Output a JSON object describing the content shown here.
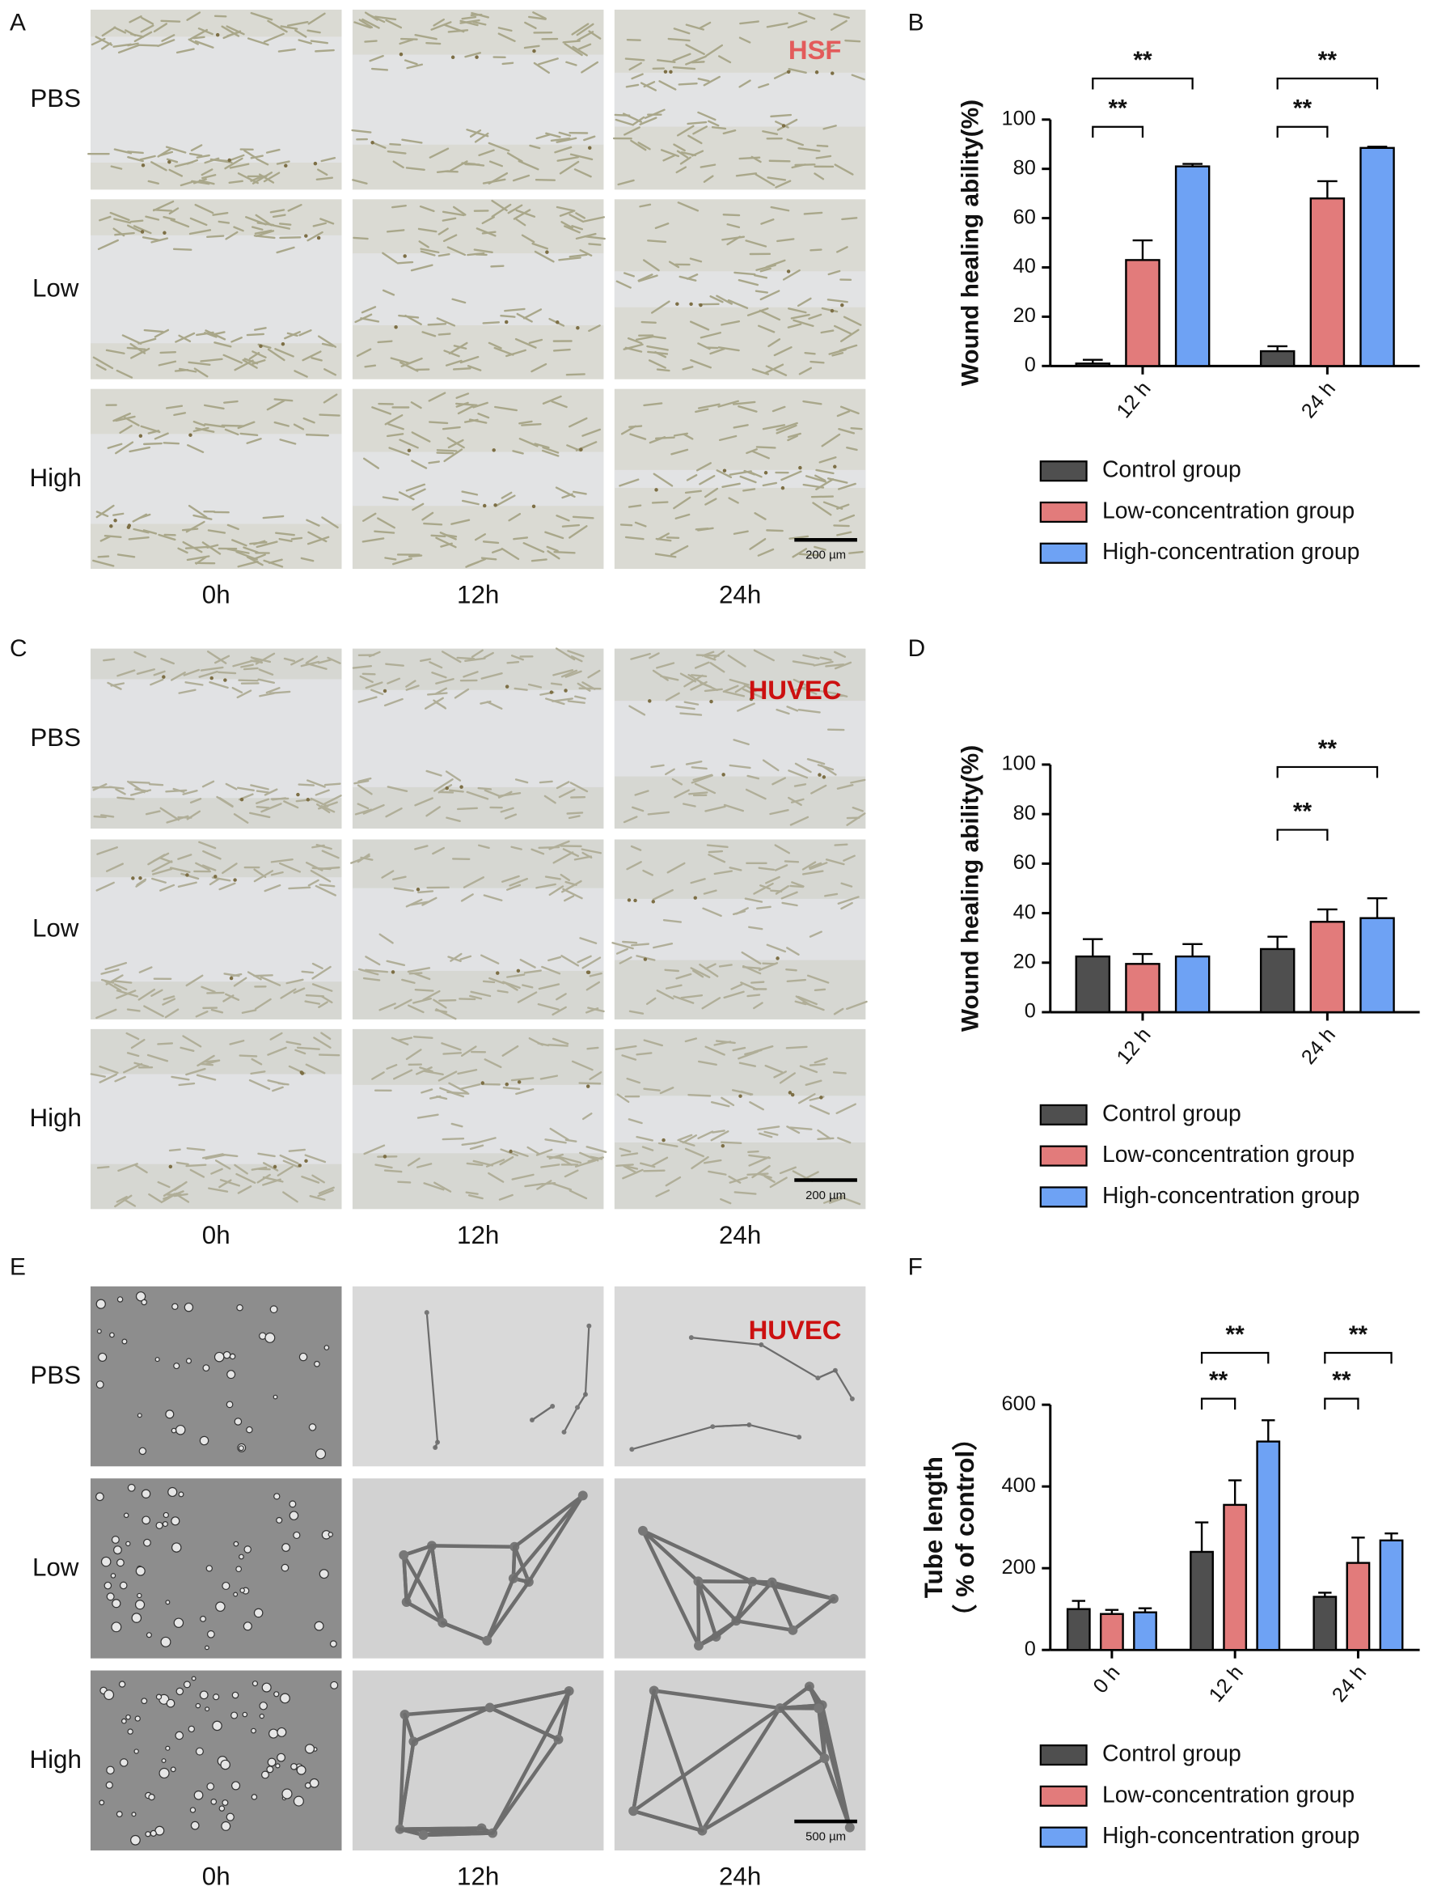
{
  "panels": [
    {
      "label": "A",
      "cell_type": "HSF",
      "rows": [
        "PBS",
        "Low",
        "High"
      ],
      "columns": [
        "0h",
        "12h",
        "24h"
      ],
      "scale_bar": "200 µm"
    },
    {
      "label": "C",
      "cell_type": "HUVEC",
      "rows": [
        "PBS",
        "Low",
        "High"
      ],
      "columns": [
        "0h",
        "12h",
        "24h"
      ],
      "scale_bar": "200 µm"
    },
    {
      "label": "E",
      "cell_type": "HUVEC",
      "rows": [
        "PBS",
        "Low",
        "High"
      ],
      "columns": [
        "0h",
        "12h",
        "24h"
      ],
      "scale_bar": "500 µm"
    }
  ],
  "chart_data": [
    {
      "type": "bar",
      "panel_label": "B",
      "ylabel": "Wound healing ability(%)",
      "categories": [
        "12 h",
        "24 h"
      ],
      "series": [
        {
          "name": "Control group",
          "color": "#4f4f4f",
          "values": [
            1,
            6
          ],
          "errors": [
            1.5,
            2
          ]
        },
        {
          "name": "Low-concentration group",
          "color": "#e27b7b",
          "values": [
            43,
            68
          ],
          "errors": [
            8,
            7
          ]
        },
        {
          "name": "High-concentration group",
          "color": "#6ea2f4",
          "values": [
            81,
            88.5
          ],
          "errors": [
            1,
            0.5
          ]
        }
      ],
      "ylim": [
        0,
        100
      ],
      "yticks": [
        0,
        20,
        40,
        60,
        80,
        100
      ],
      "significance": [
        {
          "category": "12 h",
          "between": [
            "Control group",
            "Low-concentration group"
          ],
          "label": "**"
        },
        {
          "category": "12 h",
          "between": [
            "Control group",
            "High-concentration group"
          ],
          "label": "**"
        },
        {
          "category": "24 h",
          "between": [
            "Control group",
            "Low-concentration group"
          ],
          "label": "**"
        },
        {
          "category": "24 h",
          "between": [
            "Control group",
            "High-concentration group"
          ],
          "label": "**"
        }
      ]
    },
    {
      "type": "bar",
      "panel_label": "D",
      "ylabel": "Wound healing ability(%)",
      "categories": [
        "12 h",
        "24 h"
      ],
      "series": [
        {
          "name": "Control group",
          "color": "#4f4f4f",
          "values": [
            22.5,
            25.5
          ],
          "errors": [
            7,
            5
          ]
        },
        {
          "name": "Low-concentration group",
          "color": "#e27b7b",
          "values": [
            19.5,
            36.5
          ],
          "errors": [
            4,
            5
          ]
        },
        {
          "name": "High-concentration group",
          "color": "#6ea2f4",
          "values": [
            22.5,
            38
          ],
          "errors": [
            5,
            8
          ]
        }
      ],
      "ylim": [
        0,
        100
      ],
      "yticks": [
        0,
        20,
        40,
        60,
        80,
        100
      ],
      "significance": [
        {
          "category": "24 h",
          "between": [
            "Control group",
            "Low-concentration group"
          ],
          "label": "**"
        },
        {
          "category": "24 h",
          "between": [
            "Control group",
            "High-concentration group"
          ],
          "label": "**"
        }
      ]
    },
    {
      "type": "bar",
      "panel_label": "F",
      "ylabel": "Tube length",
      "ylabel_sub": "（ % of control）",
      "categories": [
        "0 h",
        "12 h",
        "24 h"
      ],
      "series": [
        {
          "name": "Control group",
          "color": "#4f4f4f",
          "values": [
            100,
            240,
            130
          ],
          "errors": [
            20,
            72,
            10
          ]
        },
        {
          "name": "Low-concentration group",
          "color": "#e27b7b",
          "values": [
            88,
            355,
            213
          ],
          "errors": [
            10,
            60,
            62
          ]
        },
        {
          "name": "High-concentration group",
          "color": "#6ea2f4",
          "values": [
            92,
            510,
            268
          ],
          "errors": [
            10,
            52,
            17
          ]
        }
      ],
      "ylim": [
        0,
        600
      ],
      "yticks": [
        0,
        200,
        400,
        600
      ],
      "significance": [
        {
          "category": "12 h",
          "between": [
            "Control group",
            "Low-concentration group"
          ],
          "label": "**"
        },
        {
          "category": "12 h",
          "between": [
            "Control group",
            "High-concentration group"
          ],
          "label": "**"
        },
        {
          "category": "24 h",
          "between": [
            "Control group",
            "Low-concentration group"
          ],
          "label": "**"
        },
        {
          "category": "24 h",
          "between": [
            "Control group",
            "High-concentration group"
          ],
          "label": "**"
        }
      ]
    }
  ]
}
